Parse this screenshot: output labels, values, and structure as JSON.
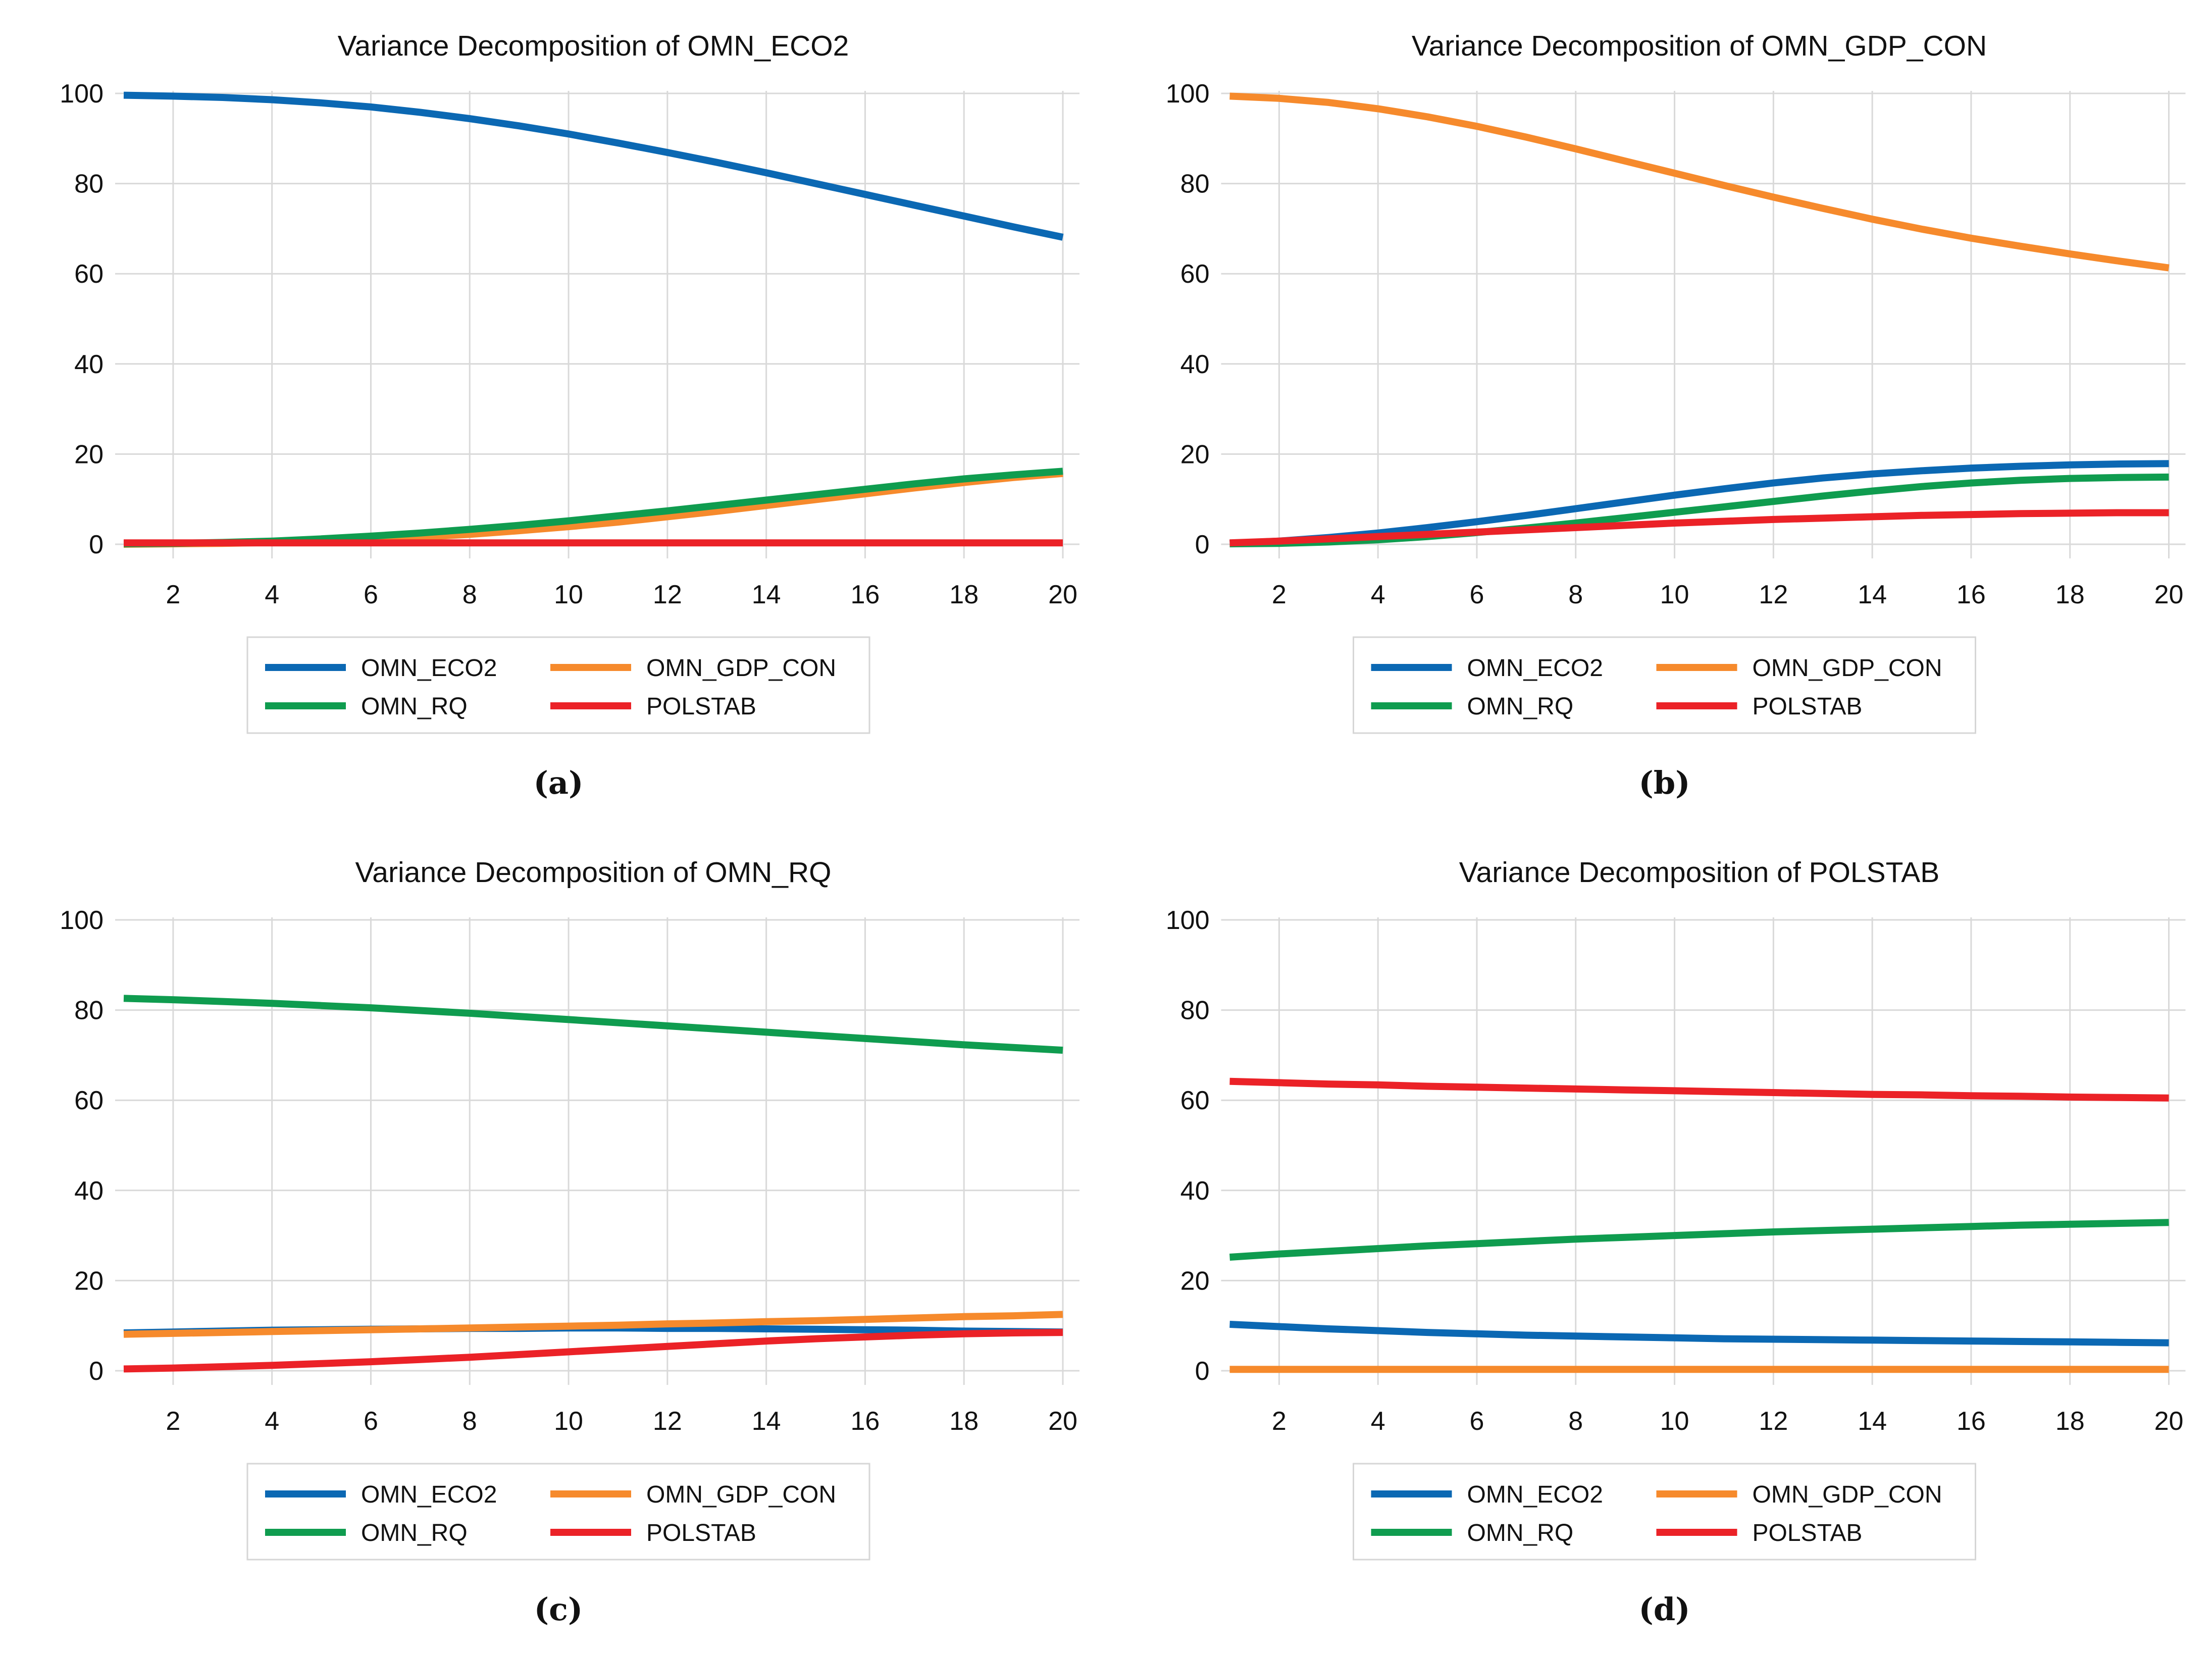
{
  "figure": {
    "background": "#ffffff",
    "grid_color": "#D9D9D9",
    "text_color": "#111111",
    "legend_border_color": "#D6D6D6"
  },
  "chart_data": [
    {
      "type": "line",
      "title": "Variance Decomposition of OMN_ECO2",
      "label": "(a)",
      "x": [
        1,
        2,
        3,
        4,
        5,
        6,
        7,
        8,
        9,
        10,
        11,
        12,
        13,
        14,
        15,
        16,
        17,
        18,
        19,
        20
      ],
      "xticks": [
        2,
        4,
        6,
        8,
        10,
        12,
        14,
        16,
        18,
        20
      ],
      "yticks": [
        0,
        20,
        40,
        60,
        80,
        100
      ],
      "ylim": [
        0,
        100
      ],
      "grid": "on",
      "legend_position": "bottom",
      "series": [
        {
          "name": "OMN_ECO2",
          "color": "#0B68B3",
          "values": [
            99.6,
            99.4,
            99.1,
            98.6,
            97.9,
            97.0,
            95.8,
            94.4,
            92.8,
            91.0,
            89.0,
            86.9,
            84.7,
            82.4,
            80.0,
            77.6,
            75.2,
            72.8,
            70.4,
            68.1
          ]
        },
        {
          "name": "OMN_GDP_CON",
          "color": "#F68A2C",
          "values": [
            0.0,
            0.1,
            0.2,
            0.4,
            0.7,
            1.1,
            1.6,
            2.2,
            3.0,
            3.9,
            4.9,
            6.1,
            7.3,
            8.6,
            9.9,
            11.2,
            12.5,
            13.7,
            14.8,
            15.7
          ]
        },
        {
          "name": "OMN_RQ",
          "color": "#0F9C4F",
          "values": [
            0.1,
            0.2,
            0.4,
            0.7,
            1.2,
            1.8,
            2.5,
            3.3,
            4.2,
            5.2,
            6.3,
            7.4,
            8.6,
            9.8,
            11.0,
            12.2,
            13.4,
            14.5,
            15.4,
            16.2
          ]
        },
        {
          "name": "POLSTAB",
          "color": "#EB2227",
          "values": [
            0.3,
            0.3,
            0.3,
            0.3,
            0.3,
            0.3,
            0.3,
            0.3,
            0.3,
            0.3,
            0.3,
            0.3,
            0.3,
            0.3,
            0.3,
            0.3,
            0.3,
            0.3,
            0.3,
            0.3
          ]
        }
      ]
    },
    {
      "type": "line",
      "title": "Variance Decomposition of OMN_GDP_CON",
      "label": "(b)",
      "x": [
        1,
        2,
        3,
        4,
        5,
        6,
        7,
        8,
        9,
        10,
        11,
        12,
        13,
        14,
        15,
        16,
        17,
        18,
        19,
        20
      ],
      "xticks": [
        2,
        4,
        6,
        8,
        10,
        12,
        14,
        16,
        18,
        20
      ],
      "yticks": [
        0,
        20,
        40,
        60,
        80,
        100
      ],
      "ylim": [
        0,
        100
      ],
      "grid": "on",
      "legend_position": "bottom",
      "series": [
        {
          "name": "OMN_ECO2",
          "color": "#0B68B3",
          "values": [
            0.2,
            0.7,
            1.5,
            2.5,
            3.7,
            5.0,
            6.4,
            7.9,
            9.4,
            10.9,
            12.3,
            13.6,
            14.7,
            15.6,
            16.3,
            16.9,
            17.3,
            17.6,
            17.8,
            17.9
          ]
        },
        {
          "name": "OMN_GDP_CON",
          "color": "#F68A2C",
          "values": [
            99.4,
            98.9,
            98.0,
            96.6,
            94.8,
            92.7,
            90.3,
            87.7,
            85.0,
            82.3,
            79.6,
            77.0,
            74.5,
            72.1,
            69.9,
            67.9,
            66.1,
            64.4,
            62.8,
            61.3
          ]
        },
        {
          "name": "OMN_RQ",
          "color": "#0F9C4F",
          "values": [
            0.1,
            0.2,
            0.5,
            1.0,
            1.7,
            2.6,
            3.6,
            4.7,
            5.9,
            7.1,
            8.3,
            9.5,
            10.7,
            11.8,
            12.8,
            13.6,
            14.2,
            14.6,
            14.8,
            14.9
          ]
        },
        {
          "name": "POLSTAB",
          "color": "#EB2227",
          "values": [
            0.3,
            0.7,
            1.2,
            1.7,
            2.2,
            2.7,
            3.2,
            3.7,
            4.2,
            4.7,
            5.1,
            5.5,
            5.8,
            6.1,
            6.4,
            6.6,
            6.8,
            6.9,
            7.0,
            7.0
          ]
        }
      ]
    },
    {
      "type": "line",
      "title": "Variance Decomposition of OMN_RQ",
      "label": "(c)",
      "x": [
        1,
        2,
        3,
        4,
        5,
        6,
        7,
        8,
        9,
        10,
        11,
        12,
        13,
        14,
        15,
        16,
        17,
        18,
        19,
        20
      ],
      "xticks": [
        2,
        4,
        6,
        8,
        10,
        12,
        14,
        16,
        18,
        20
      ],
      "yticks": [
        0,
        20,
        40,
        60,
        80,
        100
      ],
      "ylim": [
        0,
        100
      ],
      "grid": "on",
      "legend_position": "bottom",
      "series": [
        {
          "name": "OMN_ECO2",
          "color": "#0B68B3",
          "values": [
            8.4,
            8.6,
            8.8,
            9.0,
            9.1,
            9.2,
            9.3,
            9.4,
            9.4,
            9.5,
            9.5,
            9.4,
            9.4,
            9.3,
            9.2,
            9.1,
            9.0,
            8.8,
            8.7,
            8.6
          ]
        },
        {
          "name": "OMN_GDP_CON",
          "color": "#F68A2C",
          "values": [
            8.1,
            8.3,
            8.5,
            8.7,
            8.9,
            9.1,
            9.3,
            9.5,
            9.7,
            9.9,
            10.1,
            10.4,
            10.6,
            10.9,
            11.1,
            11.4,
            11.7,
            12.0,
            12.2,
            12.5
          ]
        },
        {
          "name": "OMN_RQ",
          "color": "#0F9C4F",
          "values": [
            82.6,
            82.3,
            81.9,
            81.5,
            81.0,
            80.5,
            79.9,
            79.3,
            78.6,
            77.9,
            77.2,
            76.5,
            75.8,
            75.1,
            74.4,
            73.7,
            73.0,
            72.3,
            71.7,
            71.1
          ]
        },
        {
          "name": "POLSTAB",
          "color": "#EB2227",
          "values": [
            0.4,
            0.6,
            0.9,
            1.2,
            1.6,
            2.0,
            2.5,
            3.0,
            3.6,
            4.2,
            4.8,
            5.4,
            6.0,
            6.6,
            7.1,
            7.5,
            7.9,
            8.2,
            8.4,
            8.5
          ]
        }
      ]
    },
    {
      "type": "line",
      "title": "Variance Decomposition of POLSTAB",
      "label": "(d)",
      "x": [
        1,
        2,
        3,
        4,
        5,
        6,
        7,
        8,
        9,
        10,
        11,
        12,
        13,
        14,
        15,
        16,
        17,
        18,
        19,
        20
      ],
      "xticks": [
        2,
        4,
        6,
        8,
        10,
        12,
        14,
        16,
        18,
        20
      ],
      "yticks": [
        0,
        20,
        40,
        60,
        80,
        100
      ],
      "ylim": [
        0,
        100
      ],
      "grid": "on",
      "legend_position": "bottom",
      "series": [
        {
          "name": "OMN_ECO2",
          "color": "#0B68B3",
          "values": [
            10.3,
            9.8,
            9.3,
            8.9,
            8.5,
            8.2,
            7.9,
            7.7,
            7.5,
            7.3,
            7.1,
            7.0,
            6.9,
            6.8,
            6.7,
            6.6,
            6.5,
            6.4,
            6.3,
            6.2
          ]
        },
        {
          "name": "OMN_GDP_CON",
          "color": "#F68A2C",
          "values": [
            0.3,
            0.3,
            0.3,
            0.3,
            0.3,
            0.3,
            0.3,
            0.3,
            0.3,
            0.3,
            0.3,
            0.3,
            0.3,
            0.3,
            0.3,
            0.3,
            0.3,
            0.3,
            0.3,
            0.3
          ]
        },
        {
          "name": "OMN_RQ",
          "color": "#0F9C4F",
          "values": [
            25.2,
            25.9,
            26.5,
            27.1,
            27.7,
            28.2,
            28.7,
            29.2,
            29.6,
            30.0,
            30.4,
            30.8,
            31.1,
            31.4,
            31.7,
            32.0,
            32.3,
            32.5,
            32.7,
            32.9
          ]
        },
        {
          "name": "POLSTAB",
          "color": "#EB2227",
          "values": [
            64.2,
            63.9,
            63.6,
            63.4,
            63.1,
            62.9,
            62.7,
            62.5,
            62.3,
            62.1,
            61.9,
            61.7,
            61.5,
            61.3,
            61.2,
            61.0,
            60.9,
            60.7,
            60.6,
            60.5
          ]
        }
      ]
    }
  ]
}
